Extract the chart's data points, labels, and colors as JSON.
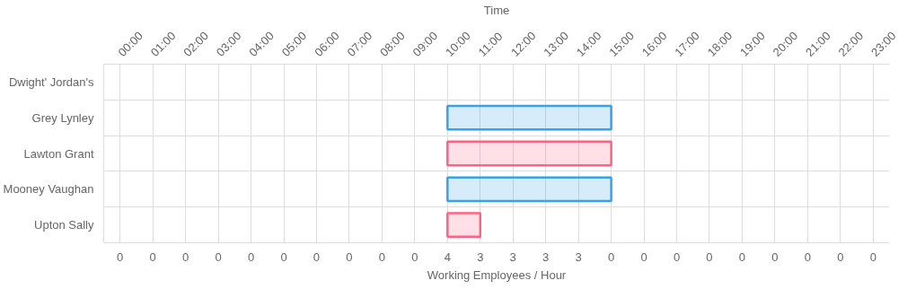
{
  "chart_data": {
    "type": "bar",
    "orientation": "horizontal",
    "categories": [
      "Dwight' Jordan's",
      "Grey Lynley",
      "Lawton Grant",
      "Mooney Vaughan",
      "Upton Sally"
    ],
    "base": [
      null,
      10,
      10,
      10,
      10
    ],
    "values": [
      null,
      5,
      5,
      5,
      1
    ],
    "colors": [
      "#36a2eb",
      "#36a2eb",
      "#ff6384",
      "#36a2eb",
      "#ff6384"
    ],
    "xlim": [
      -0.5,
      23.5
    ],
    "xticks": [
      {
        "value": 0,
        "label": "00:00"
      },
      {
        "value": 1,
        "label": "01:00"
      },
      {
        "value": 2,
        "label": "02:00"
      },
      {
        "value": 3,
        "label": "03:00"
      },
      {
        "value": 4,
        "label": "04:00"
      },
      {
        "value": 5,
        "label": "05:00"
      },
      {
        "value": 6,
        "label": "06:00"
      },
      {
        "value": 7,
        "label": "07:00"
      },
      {
        "value": 8,
        "label": "08:00"
      },
      {
        "value": 9,
        "label": "09:00"
      },
      {
        "value": 10,
        "label": "10:00"
      },
      {
        "value": 11,
        "label": "11:00"
      },
      {
        "value": 12,
        "label": "12:00"
      },
      {
        "value": 13,
        "label": "13:00"
      },
      {
        "value": 14,
        "label": "14:00"
      },
      {
        "value": 15,
        "label": "15:00"
      },
      {
        "value": 16,
        "label": "16:00"
      },
      {
        "value": 17,
        "label": "17:00"
      },
      {
        "value": 18,
        "label": "18:00"
      },
      {
        "value": 19,
        "label": "19:00"
      },
      {
        "value": 20,
        "label": "20:00"
      },
      {
        "value": 21,
        "label": "21:00"
      },
      {
        "value": 22,
        "label": "22:00"
      },
      {
        "value": 23,
        "label": "23:00"
      }
    ],
    "xlabel": "Time",
    "annotations": [
      "0",
      "0",
      "0",
      "0",
      "0",
      "0",
      "0",
      "0",
      "0",
      "0",
      "4",
      "3",
      "3",
      "3",
      "3",
      "0",
      "0",
      "0",
      "0",
      "0",
      "0",
      "0",
      "0",
      "0",
      "Working Employees / Hour"
    ],
    "grid": true
  }
}
